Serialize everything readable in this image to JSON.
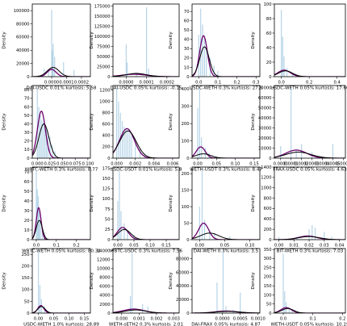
{
  "colors": {
    "hist": "#a9cce3",
    "kde_black": "#000000",
    "kde_purple": "#6a006a",
    "frame": "#000000"
  },
  "chart_data": [
    {
      "type": "area",
      "xlabel": "DAI-USDC 0.01% kurtosis: 5.58",
      "ylabel": "Density",
      "xlim": [
        -0.00013,
        0.00026
      ],
      "ylim": [
        0,
        110000
      ],
      "xticks": [
        0.0,
        0.0001,
        0.0002
      ],
      "xtick_labels": [
        "0.0000",
        "0.0001",
        "0.0002"
      ],
      "yticks": [
        0,
        20000,
        40000,
        60000,
        80000,
        100000
      ],
      "ytick_labels": [
        "0",
        "20000",
        "40000",
        "60000",
        "80000",
        "100000"
      ],
      "spikes": [
        [
          -5e-05,
          12000
        ],
        [
          0.0,
          101000
        ],
        [
          5e-06,
          40000
        ],
        [
          1e-05,
          50000
        ],
        [
          2e-05,
          30000
        ],
        [
          8e-05,
          22000
        ],
        [
          0.00015,
          10000
        ],
        [
          -2e-05,
          8000
        ]
      ],
      "kde_black": {
        "mu": 1e-05,
        "sigma": 4e-05,
        "peak": 14000
      },
      "kde_purple": {
        "mu": 0.0,
        "sigma": 3e-05,
        "peak": 11000
      }
    },
    {
      "type": "area",
      "xlabel": "DAI-USDC 0.05% kurtosis: -0.15",
      "ylabel": "Density",
      "xlim": [
        -6.5e-05,
        0.00026
      ],
      "ylim": [
        0,
        180000
      ],
      "xticks": [
        0.0,
        0.0001,
        0.0002
      ],
      "xtick_labels": [
        "0.0000",
        "0.0001",
        "0.0002"
      ],
      "yticks": [
        0,
        25000,
        50000,
        75000,
        100000,
        125000,
        150000,
        175000
      ],
      "ytick_labels": [
        "0",
        "25000",
        "50000",
        "75000",
        "100000",
        "125000",
        "150000",
        "175000"
      ],
      "spikes": [
        [
          0.0,
          80000
        ],
        [
          5e-06,
          35000
        ],
        [
          0.0001,
          172000
        ],
        [
          0.00011,
          20000
        ],
        [
          5e-05,
          10000
        ]
      ],
      "kde_black": {
        "mu": 5e-05,
        "sigma": 5e-05,
        "peak": 8000
      },
      "kde_purple": {
        "mu": 4e-05,
        "sigma": 6e-05,
        "peak": 6000
      }
    },
    {
      "type": "area",
      "xlabel": "USDC-WETH 0.3% kurtosis: 27.8",
      "ylabel": "Density",
      "xlim": [
        -0.035,
        0.32
      ],
      "ylim": [
        0,
        78
      ],
      "xticks": [
        0.0,
        0.1,
        0.2,
        0.3
      ],
      "xtick_labels": [
        "0.0",
        "0.1",
        "0.2",
        "0.3"
      ],
      "yticks": [
        0,
        10,
        20,
        30,
        40,
        50,
        60,
        70
      ],
      "ytick_labels": [
        "0",
        "10",
        "20",
        "30",
        "40",
        "50",
        "60",
        "70"
      ],
      "spikes": [
        [
          0.0,
          45
        ],
        [
          0.01,
          73
        ],
        [
          0.02,
          56
        ],
        [
          0.03,
          42
        ],
        [
          0.04,
          30
        ],
        [
          0.06,
          20
        ],
        [
          0.08,
          12
        ],
        [
          0.1,
          6
        ]
      ],
      "kde_black": {
        "mu": 0.03,
        "sigma": 0.025,
        "peak": 32
      },
      "kde_purple": {
        "mu": 0.025,
        "sigma": 0.02,
        "peak": 44
      }
    },
    {
      "type": "area",
      "xlabel": "USDC-WETH 0.05% kurtosis: 17.66",
      "ylabel": "Density",
      "xlim": [
        -0.05,
        0.46
      ],
      "ylim": [
        0,
        100
      ],
      "xticks": [
        0.0,
        0.2,
        0.4
      ],
      "xtick_labels": [
        "0.0",
        "0.2",
        "0.4"
      ],
      "yticks": [
        0,
        20,
        40,
        60,
        80,
        100
      ],
      "ytick_labels": [
        "0",
        "20",
        "40",
        "60",
        "80",
        "100"
      ],
      "spikes": [
        [
          0.0,
          92
        ],
        [
          0.01,
          55
        ],
        [
          0.02,
          28
        ],
        [
          0.04,
          12
        ],
        [
          0.08,
          5
        ]
      ],
      "kde_black": {
        "mu": 0.03,
        "sigma": 0.05,
        "peak": 8
      },
      "kde_purple": {
        "mu": 0.02,
        "sigma": 0.045,
        "peak": 9
      }
    },
    {
      "type": "area",
      "xlabel": "WBTC-WETH 0.3% kurtosis: 8.77",
      "ylabel": "Density",
      "xlim": [
        -0.01,
        0.105
      ],
      "ylim": [
        0,
        85
      ],
      "xticks": [
        0.0,
        0.025,
        0.05,
        0.075,
        0.1
      ],
      "xtick_labels": [
        "0.000",
        "0.025",
        "0.050",
        "0.075",
        "0.100"
      ],
      "yticks": [
        0,
        10,
        20,
        30,
        40,
        50,
        60,
        70,
        80
      ],
      "ytick_labels": [
        "0",
        "10",
        "20",
        "30",
        "40",
        "50",
        "60",
        "70",
        "80"
      ],
      "spikes": [
        [
          0.0,
          80
        ],
        [
          0.003,
          60
        ],
        [
          0.006,
          50
        ],
        [
          0.009,
          45
        ],
        [
          0.012,
          42
        ],
        [
          0.015,
          40
        ],
        [
          0.018,
          35
        ],
        [
          0.021,
          30
        ],
        [
          0.025,
          25
        ],
        [
          0.03,
          15
        ],
        [
          0.035,
          8
        ]
      ],
      "kde_black": {
        "mu": 0.013,
        "sigma": 0.01,
        "peak": 40
      },
      "kde_purple": {
        "mu": 0.008,
        "sigma": 0.008,
        "peak": 55
      }
    },
    {
      "type": "area",
      "xlabel": "USDC-USDT 0.01% kurtosis: 5.8",
      "ylabel": "Density",
      "xlim": [
        -0.0004,
        0.0067
      ],
      "ylim": [
        0,
        1280
      ],
      "xticks": [
        0.0,
        0.002,
        0.004,
        0.006
      ],
      "xtick_labels": [
        "0.000",
        "0.002",
        "0.004",
        "0.006"
      ],
      "yticks": [
        0,
        200,
        400,
        600,
        800,
        1000,
        1200
      ],
      "ytick_labels": [
        "0",
        "200",
        "400",
        "600",
        "800",
        "1000",
        "1200"
      ],
      "spikes": [
        [
          0.0,
          1220
        ],
        [
          0.0002,
          1000
        ],
        [
          0.0004,
          800
        ],
        [
          0.0006,
          650
        ],
        [
          0.0008,
          550
        ],
        [
          0.001,
          520
        ],
        [
          0.0012,
          500
        ],
        [
          0.0014,
          450
        ],
        [
          0.0016,
          400
        ],
        [
          0.002,
          300
        ],
        [
          0.0025,
          180
        ],
        [
          0.003,
          80
        ]
      ],
      "kde_black": {
        "mu": 0.0012,
        "sigma": 0.0009,
        "peak": 480
      },
      "kde_purple": {
        "mu": 0.0011,
        "sigma": 0.0008,
        "peak": 520
      }
    },
    {
      "type": "area",
      "xlabel": "WETH-USDT 0.3% kurtosis: 8.47",
      "ylabel": "Density",
      "xlim": [
        -0.015,
        0.165
      ],
      "ylim": [
        0,
        420
      ],
      "xticks": [
        0.0,
        0.05,
        0.1,
        0.15
      ],
      "xtick_labels": [
        "0.00",
        "0.05",
        "0.10",
        "0.15"
      ],
      "yticks": [
        0,
        100,
        200,
        300,
        400
      ],
      "ytick_labels": [
        "0",
        "100",
        "200",
        "300",
        "400"
      ],
      "spikes": [
        [
          0.0,
          290
        ],
        [
          0.005,
          405
        ],
        [
          0.01,
          120
        ],
        [
          0.02,
          60
        ],
        [
          0.03,
          30
        ]
      ],
      "kde_black": {
        "mu": 0.015,
        "sigma": 0.02,
        "peak": 25
      },
      "kde_purple": {
        "mu": 0.008,
        "sigma": 0.012,
        "peak": 65
      }
    },
    {
      "type": "area",
      "xlabel": "FRAX-USDC 0.05% kurtosis: 4.63",
      "ylabel": "Density",
      "xlim": [
        -6e-05,
        0.00062
      ],
      "ylim": [
        0,
        72000
      ],
      "xticks": [
        0.0,
        0.0001,
        0.0002,
        0.0003,
        0.0004,
        0.0005,
        0.0006
      ],
      "xtick_labels": [
        "0.0000",
        "0.0001",
        "0.0002",
        "0.0003",
        "0.0004",
        "0.0005",
        "0.0006"
      ],
      "yticks": [
        0,
        10000,
        20000,
        30000,
        40000,
        50000,
        60000,
        70000
      ],
      "ytick_labels": [
        "0",
        "10000",
        "20000",
        "30000",
        "40000",
        "50000",
        "60000",
        "70000"
      ],
      "spikes": [
        [
          0.0,
          12000
        ],
        [
          0.0001,
          70000
        ],
        [
          0.00015,
          9000
        ],
        [
          0.0002,
          14000
        ],
        [
          0.0003,
          6000
        ],
        [
          0.0005,
          14000
        ]
      ],
      "kde_black": {
        "mu": 0.00017,
        "sigma": 0.00012,
        "peak": 6000
      },
      "kde_purple": {
        "mu": 0.00015,
        "sigma": 0.0001,
        "peak": 8000
      }
    },
    {
      "type": "area",
      "xlabel": "WBTC-WETH 0.05% kurtosis: 80.34",
      "ylabel": "Density",
      "xlim": [
        -0.02,
        0.27
      ],
      "ylim": [
        0,
        75
      ],
      "xticks": [
        0.0,
        0.1,
        0.2
      ],
      "xtick_labels": [
        "0.0",
        "0.1",
        "0.2"
      ],
      "yticks": [
        0,
        10,
        20,
        30,
        40,
        50,
        60,
        70
      ],
      "ytick_labels": [
        "0",
        "10",
        "20",
        "30",
        "40",
        "50",
        "60",
        "70"
      ],
      "spikes": [
        [
          0.0,
          72
        ],
        [
          0.005,
          52
        ],
        [
          0.01,
          45
        ],
        [
          0.015,
          30
        ],
        [
          0.02,
          18
        ],
        [
          0.03,
          10
        ],
        [
          0.04,
          5
        ]
      ],
      "kde_black": {
        "mu": 0.015,
        "sigma": 0.015,
        "peak": 20
      },
      "kde_purple": {
        "mu": 0.012,
        "sigma": 0.012,
        "peak": 33
      }
    },
    {
      "type": "area",
      "xlabel": "WBTC-USDC 0.3% kurtosis: 7.56",
      "ylabel": "Density",
      "xlim": [
        -0.015,
        0.19
      ],
      "ylim": [
        0,
        178
      ],
      "xticks": [
        0.0,
        0.05,
        0.1,
        0.15
      ],
      "xtick_labels": [
        "0.00",
        "0.05",
        "0.10",
        "0.15"
      ],
      "yticks": [
        0,
        25,
        50,
        75,
        100,
        125,
        150,
        175
      ],
      "ytick_labels": [
        "0",
        "25",
        "50",
        "75",
        "100",
        "125",
        "150",
        "175"
      ],
      "spikes": [
        [
          0.0,
          95
        ],
        [
          0.005,
          170
        ],
        [
          0.01,
          70
        ],
        [
          0.02,
          40
        ],
        [
          0.03,
          25
        ],
        [
          0.05,
          12
        ]
      ],
      "kde_black": {
        "mu": 0.02,
        "sigma": 0.02,
        "peak": 25
      },
      "kde_purple": {
        "mu": 0.015,
        "sigma": 0.017,
        "peak": 30
      }
    },
    {
      "type": "area",
      "xlabel": "DAI-WETH 0.3% kurtosis: 3.5",
      "ylabel": "Density",
      "xlim": [
        -0.015,
        0.12
      ],
      "ylim": [
        0,
        220
      ],
      "xticks": [
        0.0,
        0.05,
        0.1
      ],
      "xtick_labels": [
        "0.00",
        "0.05",
        "0.10"
      ],
      "yticks": [
        0,
        50,
        100,
        150,
        200
      ],
      "ytick_labels": [
        "0",
        "50",
        "100",
        "150",
        "200"
      ],
      "spikes": [
        [
          0.0,
          100
        ],
        [
          0.005,
          210
        ],
        [
          0.01,
          60
        ],
        [
          0.02,
          30
        ],
        [
          0.03,
          20
        ],
        [
          0.06,
          10
        ]
      ],
      "kde_black": {
        "mu": 0.02,
        "sigma": 0.018,
        "peak": 20
      },
      "kde_purple": {
        "mu": 0.008,
        "sigma": 0.01,
        "peak": 50
      }
    },
    {
      "type": "area",
      "xlabel": "BIT-WETH 0.3% kurtosis: 7.03",
      "ylabel": "Density",
      "xlim": [
        -0.003,
        0.044
      ],
      "ylim": [
        0,
        1400
      ],
      "xticks": [
        0.0,
        0.01,
        0.02,
        0.03,
        0.04
      ],
      "xtick_labels": [
        "0.00",
        "0.01",
        "0.02",
        "0.03",
        "0.04"
      ],
      "yticks": [
        0,
        200,
        400,
        600,
        800,
        1000,
        1200,
        1400
      ],
      "ytick_labels": [
        "0",
        "200",
        "400",
        "600",
        "800",
        "1000",
        "1200",
        "1400"
      ],
      "spikes": [
        [
          0.0,
          50
        ],
        [
          0.012,
          60
        ],
        [
          0.02,
          200
        ],
        [
          0.022,
          280
        ],
        [
          0.024,
          230
        ],
        [
          0.03,
          150
        ],
        [
          0.035,
          60
        ]
      ],
      "kde_black": {
        "mu": 0.02,
        "sigma": 0.007,
        "peak": 60
      },
      "kde_purple": {
        "mu": 0.019,
        "sigma": 0.006,
        "peak": 70
      }
    },
    {
      "type": "area",
      "xlabel": "USDC-WETH 1.0% kurtosis: 28.89",
      "ylabel": "Density",
      "xlim": [
        -0.02,
        0.17
      ],
      "ylim": [
        0,
        275
      ],
      "xticks": [
        0.0,
        0.05,
        0.1,
        0.15
      ],
      "xtick_labels": [
        "0.00",
        "0.05",
        "0.10",
        "0.15"
      ],
      "yticks": [
        0,
        50,
        100,
        150,
        200,
        250
      ],
      "ytick_labels": [
        "0",
        "50",
        "100",
        "150",
        "200",
        "250"
      ],
      "spikes": [
        [
          0.0,
          265
        ],
        [
          0.005,
          120
        ],
        [
          0.01,
          60
        ],
        [
          0.02,
          30
        ],
        [
          0.03,
          10
        ]
      ],
      "kde_black": {
        "mu": 0.01,
        "sigma": 0.012,
        "peak": 28
      },
      "kde_purple": {
        "mu": 0.008,
        "sigma": 0.01,
        "peak": 32
      }
    },
    {
      "type": "area",
      "xlabel": "WETH-sETH2 0.3% kurtosis: 2.01",
      "ylabel": "Density",
      "xlim": [
        -0.0005,
        0.0033
      ],
      "ylim": [
        0,
        14500
      ],
      "xticks": [
        0.0,
        0.001,
        0.002,
        0.003
      ],
      "xtick_labels": [
        "0.000",
        "0.001",
        "0.002",
        "0.003"
      ],
      "yticks": [
        0,
        2000,
        4000,
        6000,
        8000,
        10000,
        12000,
        14000
      ],
      "ytick_labels": [
        "0",
        "2000",
        "4000",
        "6000",
        "8000",
        "10000",
        "12000",
        "14000"
      ],
      "spikes": [
        [
          0.0,
          700
        ],
        [
          0.0005,
          3800
        ],
        [
          0.0006,
          13500
        ],
        [
          0.0012,
          2000
        ],
        [
          0.0015,
          1500
        ]
      ],
      "kde_black": {
        "mu": 0.0008,
        "sigma": 0.0006,
        "peak": 700
      },
      "kde_purple": {
        "mu": 0.0007,
        "sigma": 0.0006,
        "peak": 900
      }
    },
    {
      "type": "area",
      "xlabel": "DAI-FRAX 0.05% kurtosis: 4.87",
      "ylabel": "Density",
      "xlim": [
        -0.00085,
        0.00105
      ],
      "ylim": [
        0,
        95000
      ],
      "xticks": [
        0.0,
        0.0005,
        0.001
      ],
      "xtick_labels": [
        "0.0000",
        "0.0005",
        "0.0010"
      ],
      "yticks": [
        0,
        20000,
        40000,
        60000,
        80000
      ],
      "ytick_labels": [
        "0",
        "20000",
        "40000",
        "60000",
        "80000"
      ],
      "spikes": [
        [
          -0.00015,
          45000
        ],
        [
          2e-05,
          92000
        ],
        [
          0.0001,
          10000
        ],
        [
          0.0003,
          5000
        ],
        [
          0.0005,
          30000
        ]
      ],
      "kde_black": {
        "mu": 0.00015,
        "sigma": 0.00035,
        "peak": 2500
      },
      "kde_purple": {
        "mu": 0.0001,
        "sigma": 0.0003,
        "peak": 3000
      }
    },
    {
      "type": "area",
      "xlabel": "WETH-USDT 0.05% kurtosis: 10.19",
      "ylabel": "Density",
      "xlim": [
        -0.03,
        0.21
      ],
      "ylim": [
        0,
        355
      ],
      "xticks": [
        0.0,
        0.1,
        0.2
      ],
      "xtick_labels": [
        "0.0",
        "0.1",
        "0.2"
      ],
      "yticks": [
        0,
        50,
        100,
        150,
        200,
        250,
        300,
        350
      ],
      "ytick_labels": [
        "0",
        "50",
        "100",
        "150",
        "200",
        "250",
        "300",
        "350"
      ],
      "spikes": [
        [
          0.0,
          325
        ],
        [
          0.005,
          120
        ],
        [
          0.01,
          60
        ],
        [
          0.02,
          30
        ],
        [
          0.03,
          15
        ]
      ],
      "kde_black": {
        "mu": 0.015,
        "sigma": 0.02,
        "peak": 25
      },
      "kde_purple": {
        "mu": 0.01,
        "sigma": 0.018,
        "peak": 30
      }
    }
  ]
}
